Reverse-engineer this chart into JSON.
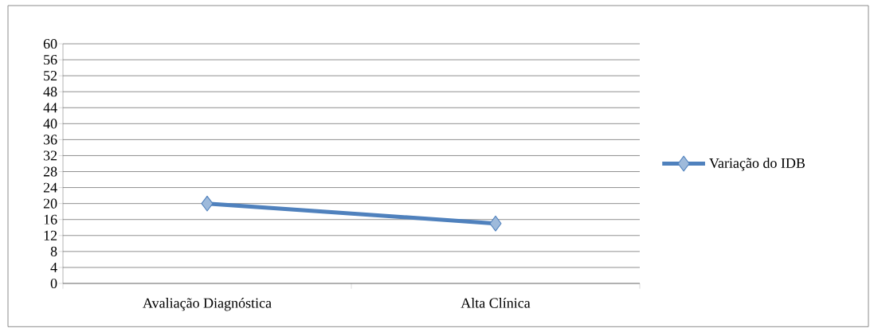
{
  "chart_data": {
    "type": "line",
    "categories": [
      "Avaliação Diagnóstica",
      "Alta Clínica"
    ],
    "series": [
      {
        "name": "Variação do IDB",
        "color": "#4f81bd",
        "values": [
          20,
          15
        ]
      }
    ],
    "ylim": [
      0,
      60
    ],
    "yticks": [
      0,
      4,
      8,
      12,
      16,
      20,
      24,
      28,
      32,
      36,
      40,
      44,
      48,
      52,
      56,
      60
    ],
    "grid": "y",
    "legend": "right",
    "marker": "diamond",
    "line_style": "solid"
  }
}
